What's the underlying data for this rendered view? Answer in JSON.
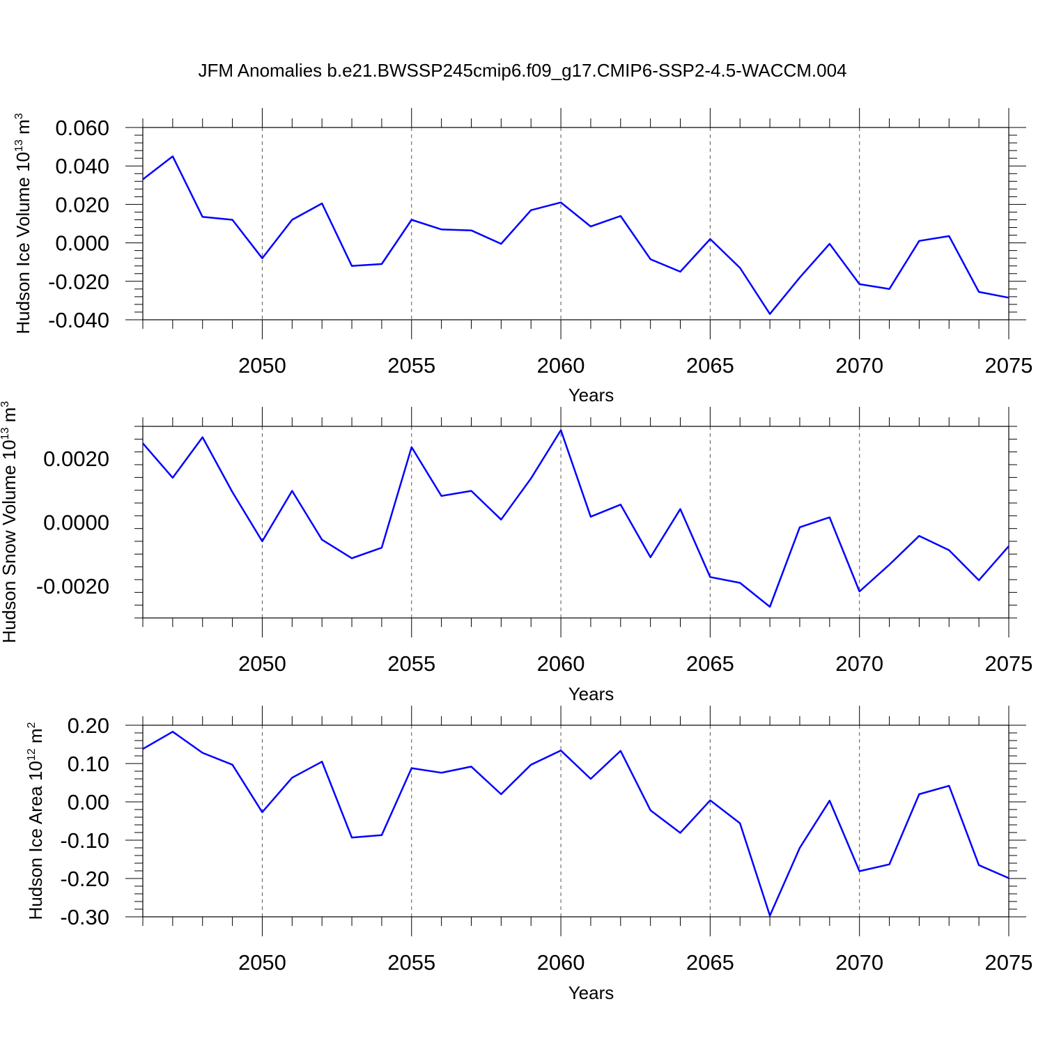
{
  "title": "JFM Anomalies b.e21.BWSSP245cmip6.f09_g17.CMIP6-SSP2-4.5-WACCM.004",
  "colors": {
    "line": "#0000ff",
    "axis": "#000000",
    "grid": "#555555"
  },
  "chart_data": [
    {
      "type": "line",
      "title": "",
      "xlabel": "Years",
      "ylabel": "Hudson Ice Volume 10",
      "ylabel_exp": "13",
      "ylabel_unit": "m",
      "ylabel_unit_exp": "3",
      "xlim": [
        2046,
        2075
      ],
      "ylim": [
        -0.04,
        0.06
      ],
      "yticks": [
        -0.04,
        -0.02,
        0.0,
        0.02,
        0.04,
        0.06
      ],
      "ytick_labels": [
        "-0.040",
        "-0.020",
        "0.000",
        "0.020",
        "0.040",
        "0.060"
      ],
      "xticks": [
        2050,
        2055,
        2060,
        2065,
        2070,
        2075
      ],
      "xtick_labels": [
        "2050",
        "2055",
        "2060",
        "2065",
        "2070",
        "2075"
      ],
      "grid": "vertical dashed at major x ticks",
      "series": [
        {
          "x": [
            2046,
            2047,
            2048,
            2049,
            2050,
            2051,
            2052,
            2053,
            2054,
            2055,
            2056,
            2057,
            2058,
            2059,
            2060,
            2061,
            2062,
            2063,
            2064,
            2065,
            2066,
            2067,
            2068,
            2069,
            2070,
            2071,
            2072,
            2073,
            2074,
            2075
          ],
          "values": [
            0.033,
            0.045,
            0.0135,
            0.012,
            -0.008,
            0.012,
            0.0205,
            -0.012,
            -0.011,
            0.012,
            0.007,
            0.0065,
            -0.0005,
            0.017,
            0.021,
            0.0085,
            0.014,
            -0.0085,
            -0.015,
            0.002,
            -0.013,
            -0.037,
            -0.018,
            -0.0005,
            -0.0215,
            -0.024,
            0.001,
            0.0035,
            -0.0255,
            -0.0285
          ]
        }
      ]
    },
    {
      "type": "line",
      "title": "",
      "xlabel": "Years",
      "ylabel": "Hudson Snow Volume 10",
      "ylabel_exp": "13",
      "ylabel_unit": "m",
      "ylabel_unit_exp": "3",
      "xlim": [
        2046,
        2075
      ],
      "ylim": [
        -0.003,
        0.003
      ],
      "yticks": [
        -0.002,
        0.0,
        0.002
      ],
      "ytick_labels": [
        "-0.0020",
        "0.0000",
        "0.0020"
      ],
      "xticks": [
        2050,
        2055,
        2060,
        2065,
        2070,
        2075
      ],
      "xtick_labels": [
        "2050",
        "2055",
        "2060",
        "2065",
        "2070",
        "2075"
      ],
      "grid": "vertical dashed at major x ticks",
      "series": [
        {
          "x": [
            2046,
            2047,
            2048,
            2049,
            2050,
            2051,
            2052,
            2053,
            2054,
            2055,
            2056,
            2057,
            2058,
            2059,
            2060,
            2061,
            2062,
            2063,
            2064,
            2065,
            2066,
            2067,
            2068,
            2069,
            2070,
            2071,
            2072,
            2073,
            2074,
            2075
          ],
          "values": [
            0.00247,
            0.00139,
            0.00266,
            0.00094,
            -0.0006,
            0.00098,
            -0.00055,
            -0.00113,
            -0.0008,
            0.00235,
            0.00082,
            0.00098,
            8e-05,
            0.00137,
            0.00288,
            0.00017,
            0.00055,
            -0.0011,
            0.00041,
            -0.00172,
            -0.0019,
            -0.00265,
            -0.00016,
            0.00015,
            -0.00217,
            -0.00133,
            -0.00043,
            -0.00088,
            -0.00182,
            -0.00075
          ]
        }
      ]
    },
    {
      "type": "line",
      "title": "",
      "xlabel": "Years",
      "ylabel": "Hudson Ice Area 10",
      "ylabel_exp": "12",
      "ylabel_unit": "m",
      "ylabel_unit_exp": "2",
      "xlim": [
        2046,
        2075
      ],
      "ylim": [
        -0.3,
        0.2
      ],
      "yticks": [
        -0.3,
        -0.2,
        -0.1,
        0.0,
        0.1,
        0.2
      ],
      "ytick_labels": [
        "-0.30",
        "-0.20",
        "-0.10",
        "0.00",
        "0.10",
        "0.20"
      ],
      "xticks": [
        2050,
        2055,
        2060,
        2065,
        2070,
        2075
      ],
      "xtick_labels": [
        "2050",
        "2055",
        "2060",
        "2065",
        "2070",
        "2075"
      ],
      "grid": "vertical dashed at major x ticks",
      "series": [
        {
          "x": [
            2046,
            2047,
            2048,
            2049,
            2050,
            2051,
            2052,
            2053,
            2054,
            2055,
            2056,
            2057,
            2058,
            2059,
            2060,
            2061,
            2062,
            2063,
            2064,
            2065,
            2066,
            2067,
            2068,
            2069,
            2070,
            2071,
            2072,
            2073,
            2074,
            2075
          ],
          "values": [
            0.138,
            0.183,
            0.128,
            0.097,
            -0.027,
            0.063,
            0.105,
            -0.093,
            -0.087,
            0.088,
            0.076,
            0.092,
            0.02,
            0.097,
            0.134,
            0.06,
            0.133,
            -0.022,
            -0.081,
            0.004,
            -0.056,
            -0.297,
            -0.12,
            0.003,
            -0.181,
            -0.163,
            0.02,
            0.042,
            -0.165,
            -0.199
          ]
        }
      ]
    }
  ]
}
